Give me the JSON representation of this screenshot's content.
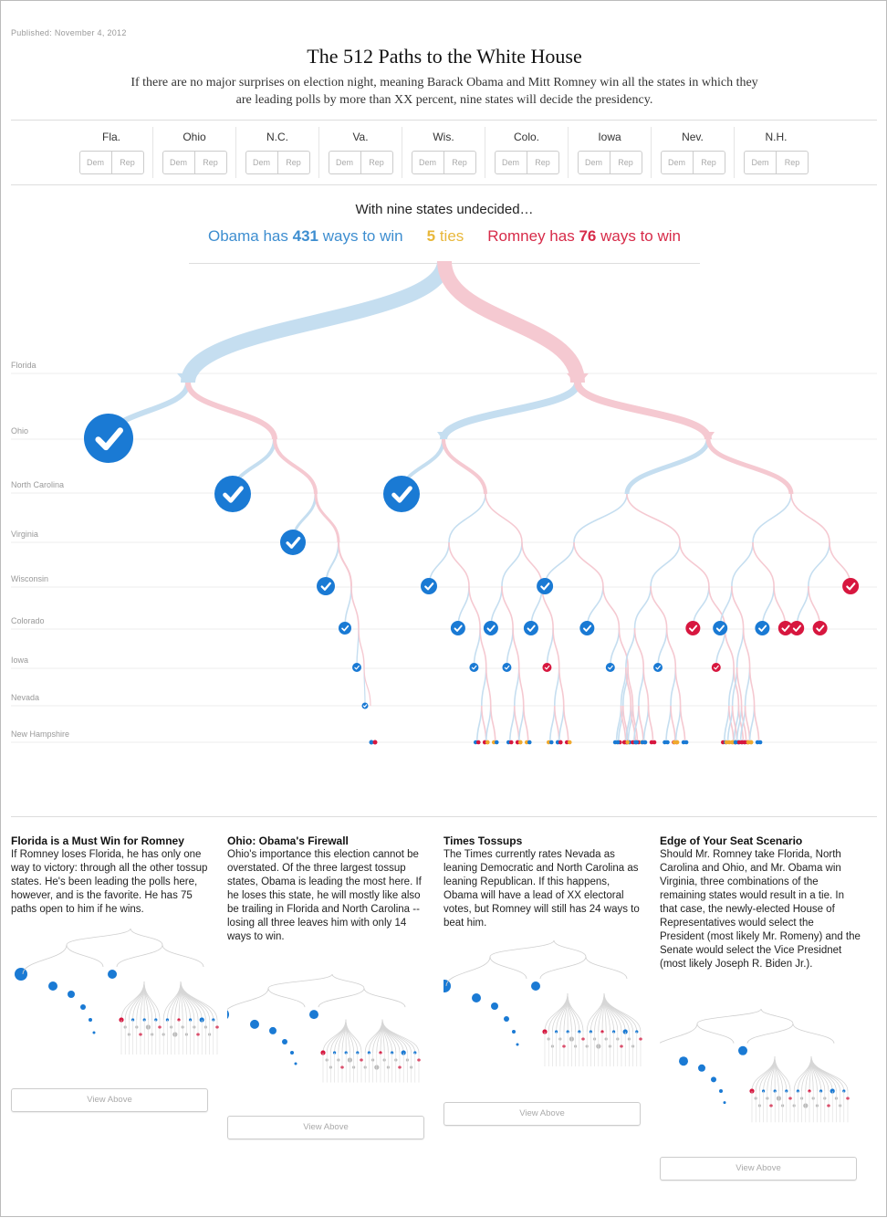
{
  "published": "Published: November 4, 2012",
  "title": "The 512 Paths to the White House",
  "subtitle": "If there are no major surprises on election night, meaning Barack Obama and Mitt Romney win all the states in which they are leading polls by more than XX percent, nine states will decide the presidency.",
  "states": [
    {
      "abbr": "Fla.",
      "dem": "Dem",
      "rep": "Rep"
    },
    {
      "abbr": "Ohio",
      "dem": "Dem",
      "rep": "Rep"
    },
    {
      "abbr": "N.C.",
      "dem": "Dem",
      "rep": "Rep"
    },
    {
      "abbr": "Va.",
      "dem": "Dem",
      "rep": "Rep"
    },
    {
      "abbr": "Wis.",
      "dem": "Dem",
      "rep": "Rep"
    },
    {
      "abbr": "Colo.",
      "dem": "Dem",
      "rep": "Rep"
    },
    {
      "abbr": "Iowa",
      "dem": "Dem",
      "rep": "Rep"
    },
    {
      "abbr": "Nev.",
      "dem": "Dem",
      "rep": "Rep"
    },
    {
      "abbr": "N.H.",
      "dem": "Dem",
      "rep": "Rep"
    }
  ],
  "summary": {
    "heading": "With nine states undecided…",
    "obama_prefix": "Obama has",
    "obama_count": "431",
    "obama_suffix": "ways to win",
    "ties_count": "5",
    "ties_label": "ties",
    "romney_prefix": "Romney has",
    "romney_count": "76",
    "romney_suffix": "ways to win"
  },
  "levels": [
    "Florida",
    "Ohio",
    "North Carolina",
    "Virginia",
    "Wisconsin",
    "Colorado",
    "Iowa",
    "Nevada",
    "New Hampshire"
  ],
  "colors": {
    "obama": "#1a7ad4",
    "obama_light": "#c5def0",
    "romney": "#d7173f",
    "romney_light": "#f5c9d1",
    "tie": "#f0a92e",
    "rule": "#dddddd"
  },
  "scenarios": [
    {
      "heading": "Florida is a Must Win for Romney",
      "body": "If Romney loses Florida, he has only one way to victory: through all the other tossup states. He's been leading the polls here, however, and is the favorite. He has 75 paths open to him if he wins.",
      "button": "View Above"
    },
    {
      "heading": "Ohio: Obama's Firewall",
      "body": "Ohio's importance this election cannot be overstated. Of the three largest tossup states, Obama is leading the most here. If he loses this state, he will mostly like also be trailing in Florida and North Carolina -- losing all three leaves him with only 14 ways to win.",
      "button": "View Above"
    },
    {
      "heading": "Times Tossups",
      "body": "The Times currently rates Nevada as leaning Democratic and North Carolina as leaning Republican. If this happens, Obama will have a lead of XX electoral votes, but Romney will still has 24 ways to beat him.",
      "button": "View Above"
    },
    {
      "heading": "Edge of Your Seat Scenario",
      "body": "Should Mr. Romney take Florida, North Carolina and Ohio, and Mr. Obama win Virginia, three combinations of the remaining states would result in a tie. In that case, the newly-elected House of Representatives would select the President (most likely Mr. Romeny) and the Senate would select the Vice Presidnet (most likely Joseph R. Biden Jr.).",
      "button": "View Above"
    }
  ]
}
